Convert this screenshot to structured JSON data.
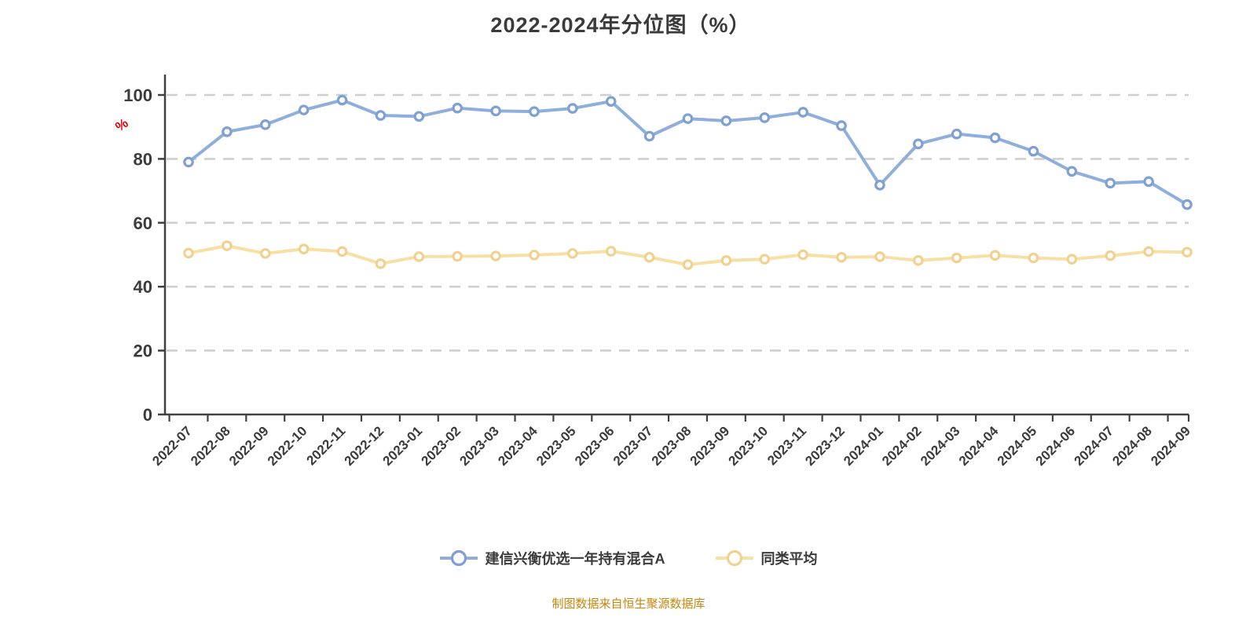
{
  "title": "2022-2024年分位图（%）",
  "footer": "制图数据来自恒生聚源数据库",
  "y_axis_unit_label": "%",
  "legend": {
    "items": [
      {
        "label": "建信兴衡优选一年持有混合A",
        "line_color": "#8FAEDC",
        "marker_stroke": "#7FA0D3"
      },
      {
        "label": "同类平均",
        "line_color": "#F6E0A4",
        "marker_stroke": "#F1D190"
      }
    ]
  },
  "axis": {
    "y_ticks": [
      0,
      20,
      40,
      60,
      80,
      100
    ],
    "axis_color": "#404040",
    "grid_color": "#CFCFCF",
    "label_color": "#3B3B3B",
    "unit_color": "#E00000"
  },
  "chart_data": {
    "type": "line",
    "title": "2022-2024年分位图（%）",
    "ylabel": "%",
    "ylim": [
      0,
      100
    ],
    "yticks": [
      0,
      20,
      40,
      60,
      80,
      100
    ],
    "grid": "horizontal-dashed",
    "legend_position": "bottom",
    "x_label_rotation": -45,
    "categories": [
      "2022-07",
      "2022-08",
      "2022-09",
      "2022-10",
      "2022-11",
      "2022-12",
      "2023-01",
      "2023-02",
      "2023-03",
      "2023-04",
      "2023-05",
      "2023-06",
      "2023-07",
      "2023-08",
      "2023-09",
      "2023-10",
      "2023-11",
      "2023-12",
      "2024-01",
      "2024-02",
      "2024-03",
      "2024-04",
      "2024-05",
      "2024-06",
      "2024-07",
      "2024-08",
      "2024-09"
    ],
    "series": [
      {
        "name": "建信兴衡优选一年持有混合A",
        "color": "#8FAEDC",
        "marker_stroke": "#7FA0D3",
        "marker": "circle",
        "values": [
          79.0,
          88.5,
          90.7,
          95.3,
          98.4,
          93.6,
          93.3,
          95.9,
          95.0,
          94.8,
          95.8,
          98.0,
          87.1,
          92.6,
          91.9,
          92.9,
          94.6,
          90.4,
          71.8,
          84.7,
          87.8,
          86.6,
          82.4,
          76.1,
          72.4,
          72.9,
          65.7
        ]
      },
      {
        "name": "同类平均",
        "color": "#F6E0A4",
        "marker_stroke": "#F1D190",
        "marker": "circle",
        "values": [
          50.5,
          52.8,
          50.4,
          51.8,
          51.0,
          47.2,
          49.4,
          49.5,
          49.6,
          49.9,
          50.4,
          51.1,
          49.2,
          46.9,
          48.2,
          48.6,
          50.0,
          49.2,
          49.4,
          48.2,
          49.0,
          49.8,
          49.0,
          48.6,
          49.7,
          51.0,
          50.8
        ]
      }
    ]
  }
}
